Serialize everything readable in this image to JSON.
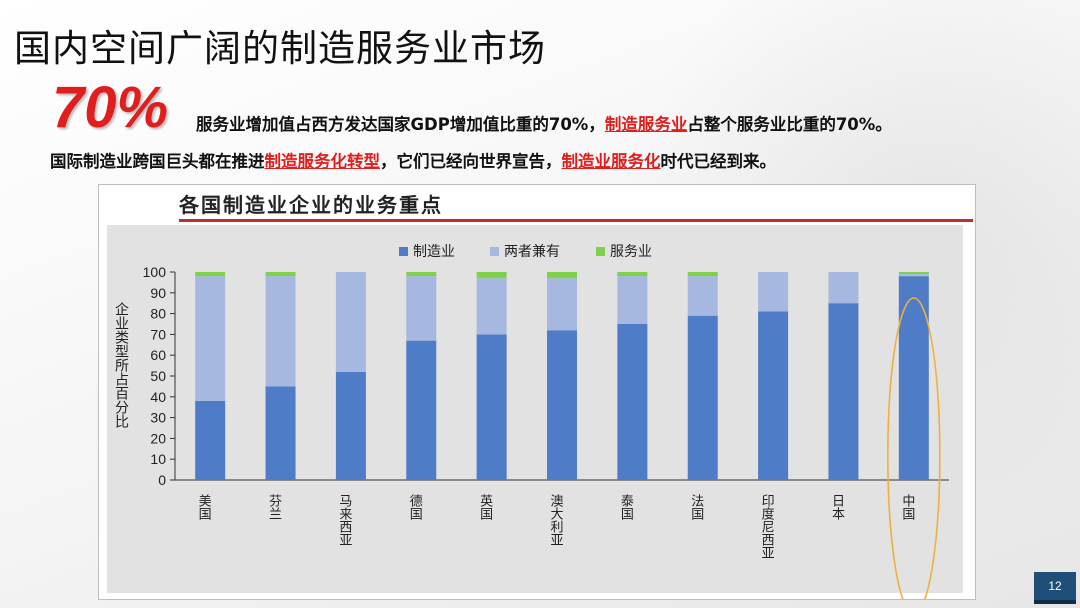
{
  "slide": {
    "title": "国内空间广阔的制造服务业市场",
    "big_number": "70%",
    "line1_a": "服务业增加值占西方发达国家GDP增加值比重的70%，",
    "line1_hl": "制造服务业",
    "line1_b": "占整个服务业比重的70%。",
    "line2_a": "国际制造业跨国巨头都在推进",
    "line2_hl1": "制造服务化转型",
    "line2_b": "，它们已经向世界宣告，",
    "line2_hl2": "制造业服务化",
    "line2_c": "时代已经到来。",
    "page_number": "12"
  },
  "chart_data": {
    "type": "bar",
    "stacked": true,
    "title": "各国制造业企业的业务重点",
    "ylabel": "企业类型所占百分比",
    "xlabel": "",
    "ylim": [
      0,
      100
    ],
    "yticks": [
      0,
      10,
      20,
      30,
      40,
      50,
      60,
      70,
      80,
      90,
      100
    ],
    "categories": [
      "美国",
      "芬兰",
      "马来西亚",
      "德国",
      "英国",
      "澳大利亚",
      "泰国",
      "法国",
      "印度尼西亚",
      "日本",
      "中国"
    ],
    "series": [
      {
        "name": "制造业",
        "color": "#4f7cc6",
        "values": [
          38,
          45,
          52,
          67,
          70,
          72,
          75,
          79,
          81,
          85,
          98
        ]
      },
      {
        "name": "两者兼有",
        "color": "#a7b8e0",
        "values": [
          60,
          53,
          48,
          31,
          27,
          25,
          23,
          19,
          19,
          15,
          1
        ]
      },
      {
        "name": "服务业",
        "color": "#7fd14b",
        "values": [
          2,
          2,
          0,
          2,
          3,
          3,
          2,
          2,
          0,
          0,
          1
        ]
      }
    ],
    "legend": "top",
    "highlight_category": "中国",
    "highlight_color": "#f0b040"
  }
}
